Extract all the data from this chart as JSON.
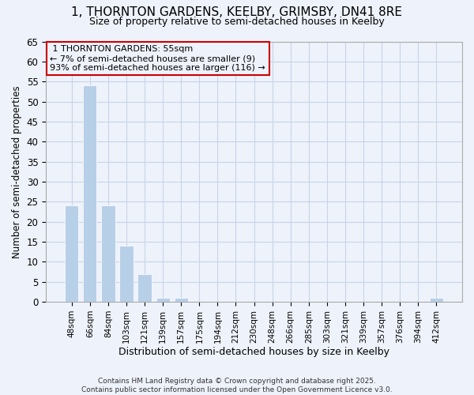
{
  "title1": "1, THORNTON GARDENS, KEELBY, GRIMSBY, DN41 8RE",
  "title2": "Size of property relative to semi-detached houses in Keelby",
  "xlabel": "Distribution of semi-detached houses by size in Keelby",
  "ylabel": "Number of semi-detached properties",
  "categories": [
    "48sqm",
    "66sqm",
    "84sqm",
    "103sqm",
    "121sqm",
    "139sqm",
    "157sqm",
    "175sqm",
    "194sqm",
    "212sqm",
    "230sqm",
    "248sqm",
    "266sqm",
    "285sqm",
    "303sqm",
    "321sqm",
    "339sqm",
    "357sqm",
    "376sqm",
    "394sqm",
    "412sqm"
  ],
  "values": [
    24,
    54,
    24,
    14,
    7,
    1,
    1,
    0,
    0,
    0,
    0,
    0,
    0,
    0,
    0,
    0,
    0,
    0,
    0,
    0,
    1
  ],
  "bar_color": "#b8cfe8",
  "annotation_box_color": "#cc0000",
  "property_label": "1 THORNTON GARDENS: 55sqm",
  "pct_smaller": 7,
  "count_smaller": 9,
  "pct_larger": 93,
  "count_larger": 116,
  "ylim": [
    0,
    65
  ],
  "yticks": [
    0,
    5,
    10,
    15,
    20,
    25,
    30,
    35,
    40,
    45,
    50,
    55,
    60,
    65
  ],
  "footer1": "Contains HM Land Registry data © Crown copyright and database right 2025.",
  "footer2": "Contains public sector information licensed under the Open Government Licence v3.0.",
  "bg_color": "#eef2fb",
  "grid_color": "#c8d4e8"
}
